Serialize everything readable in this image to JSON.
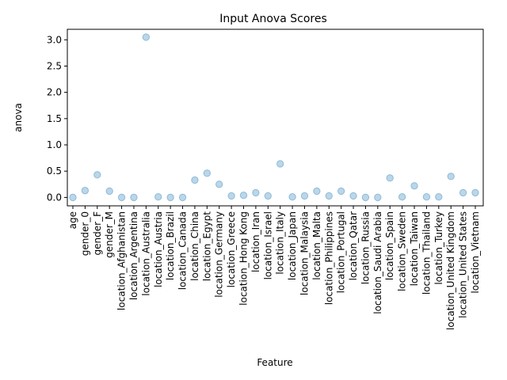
{
  "chart_data": {
    "type": "scatter",
    "title": "Input Anova Scores",
    "xlabel": "Feature",
    "ylabel": "anova",
    "categories": [
      "age",
      "gender_0",
      "gender_F",
      "gender_M",
      "location_Afghanistan",
      "location_Argentina",
      "location_Australia",
      "location_Austria",
      "location_Brazil",
      "location_Canada",
      "location_China",
      "location_Egypt",
      "location_Germany",
      "location_Greece",
      "location_Hong Kong",
      "location_Iran",
      "location_Israel",
      "location_Italy",
      "location_Japan",
      "location_Malaysia",
      "location_Malta",
      "location_Philippines",
      "location_Portugal",
      "location_Qatar",
      "location_Russia",
      "location_Saudi Arabia",
      "location_Spain",
      "location_Sweden",
      "location_Taiwan",
      "location_Thailand",
      "location_Turkey",
      "location_United Kingdom",
      "location_United States",
      "location_Vietnam"
    ],
    "values": [
      0.0,
      0.13,
      0.43,
      0.12,
      0.0,
      0.0,
      3.05,
      0.01,
      0.0,
      0.0,
      0.33,
      0.46,
      0.25,
      0.03,
      0.04,
      0.09,
      0.03,
      0.64,
      0.01,
      0.03,
      0.12,
      0.03,
      0.12,
      0.03,
      0.0,
      0.0,
      0.37,
      0.01,
      0.22,
      0.01,
      0.01,
      0.4,
      0.09,
      0.09
    ],
    "ylim": [
      -0.16,
      3.2
    ],
    "yticks": [
      0.0,
      0.5,
      1.0,
      1.5,
      2.0,
      2.5,
      3.0
    ],
    "ytick_labels": [
      "0.0",
      "0.5",
      "1.0",
      "1.5",
      "2.0",
      "2.5",
      "3.0"
    ],
    "grid": false,
    "point_color": "#1f77b4",
    "point_alpha": 0.3
  }
}
